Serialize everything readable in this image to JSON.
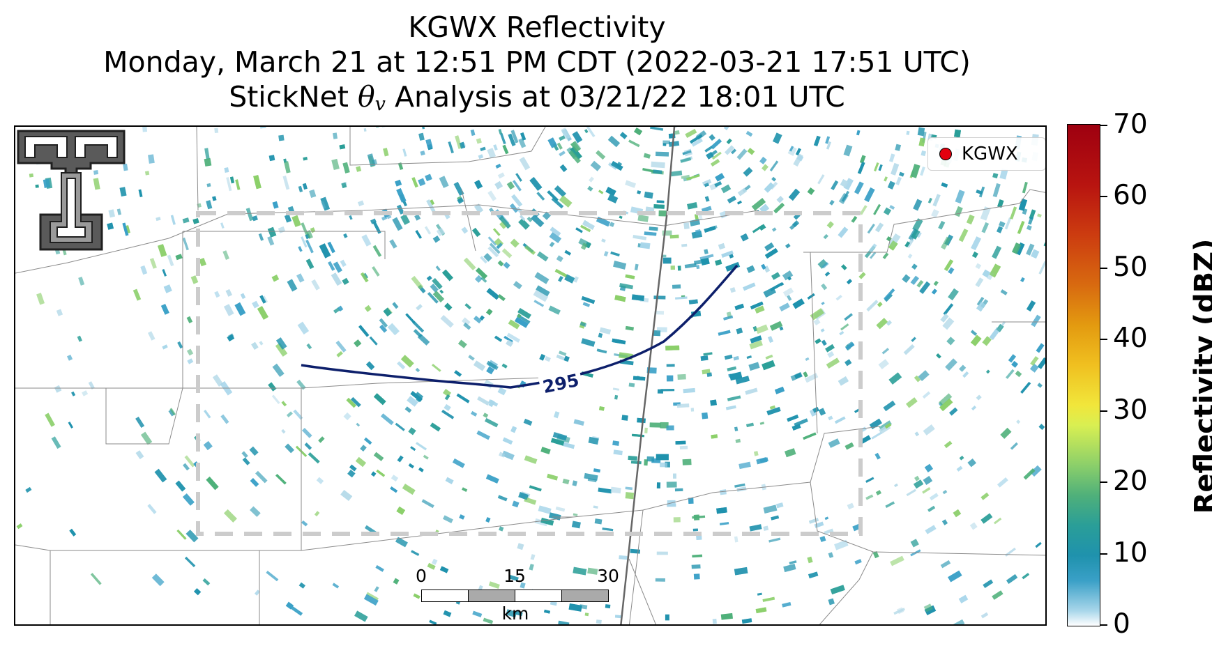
{
  "title": {
    "line1": "KGWX Reflectivity",
    "line2": "Monday, March 21 at 12:51 PM CDT (2022-03-21 17:51 UTC)",
    "line3_prefix": "StickNet ",
    "line3_theta": "θ",
    "line3_sub": "v",
    "line3_suffix": " Analysis at 03/21/22 18:01 UTC"
  },
  "legend": {
    "label": "KGWX",
    "marker_color": "#e4000f"
  },
  "contour": {
    "label": "295",
    "color": "#0d1f6b"
  },
  "scale_bar": {
    "labels": [
      "0",
      "15",
      "30"
    ],
    "unit": "km"
  },
  "colorbar": {
    "title": "Reflectivity (dBZ)",
    "ticks": [
      "0",
      "10",
      "20",
      "30",
      "40",
      "50",
      "60",
      "70"
    ],
    "min": 0,
    "max": 70
  },
  "colors": {
    "reflectivity_low": "#1f92ad",
    "reflectivity_mid": "#4fb07a",
    "boundary_box": "#cccccc"
  },
  "icons": {
    "logo": "double-t-logo-icon",
    "radar_site": "radar-site-marker-icon"
  }
}
